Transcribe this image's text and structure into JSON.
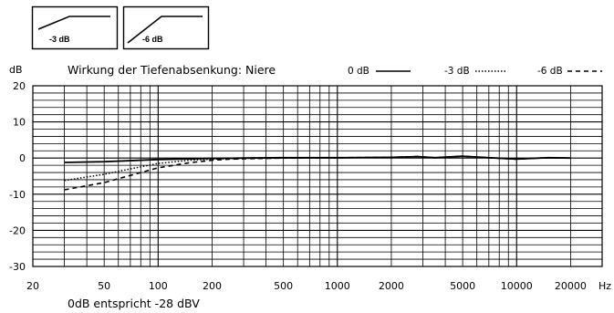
{
  "switches": [
    {
      "label": "-3 dB",
      "shape": "gentle-shelf"
    },
    {
      "label": "-6 dB",
      "shape": "steep-shelf"
    }
  ],
  "chart_data": {
    "type": "line",
    "title": "Wirkung der Tiefenabsenkung: Niere",
    "ylabel": "dB",
    "xlabel": "Hz",
    "xscale": "log",
    "xlim": [
      20,
      30000
    ],
    "ylim": [
      -30,
      20
    ],
    "xticks": [
      20,
      50,
      100,
      200,
      500,
      1000,
      2000,
      5000,
      10000,
      20000
    ],
    "xtick_labels": [
      "20",
      "50",
      "100",
      "200",
      "500",
      "1000",
      "2000",
      "5000",
      "10000",
      "20000"
    ],
    "yticks": [
      20,
      10,
      0,
      -10,
      -20,
      -30
    ],
    "ytick_labels": [
      "20",
      "10",
      "0",
      "-10",
      "-20",
      "-30"
    ],
    "grid": true,
    "legend_position": "top-right",
    "footnote": "0dB entspricht -28 dBV",
    "series": [
      {
        "name": "0 dB",
        "style": "solid",
        "x": [
          30,
          50,
          100,
          200,
          300,
          500,
          1000,
          2000,
          2800,
          3500,
          5000,
          6000,
          7000,
          10000,
          12000,
          15000,
          20000
        ],
        "y": [
          -1.2,
          -1.0,
          -0.4,
          -0.1,
          0.0,
          0.1,
          0.1,
          0.2,
          0.4,
          0.1,
          0.5,
          0.3,
          0.1,
          -0.3,
          -0.1,
          0.1,
          0.0
        ]
      },
      {
        "name": "-3 dB",
        "style": "dotted",
        "x": [
          30,
          50,
          70,
          100,
          150,
          200,
          300,
          500,
          1000,
          2000,
          2800,
          3500,
          5000,
          7000,
          10000,
          15000,
          20000
        ],
        "y": [
          -6.2,
          -4.5,
          -3.0,
          -1.5,
          -0.6,
          -0.3,
          -0.1,
          0.0,
          0.1,
          0.2,
          0.4,
          0.1,
          0.5,
          0.1,
          -0.3,
          0.1,
          0.0
        ]
      },
      {
        "name": "-6 dB",
        "style": "dashed",
        "x": [
          30,
          50,
          70,
          100,
          150,
          200,
          250,
          300,
          500,
          1000,
          2000,
          2800,
          3500,
          5000,
          7000,
          10000,
          15000,
          20000
        ],
        "y": [
          -8.8,
          -6.8,
          -4.8,
          -2.7,
          -1.3,
          -0.6,
          -0.3,
          -0.2,
          0.0,
          0.1,
          0.2,
          0.4,
          0.1,
          0.5,
          0.1,
          -0.3,
          0.1,
          0.0
        ]
      }
    ]
  }
}
